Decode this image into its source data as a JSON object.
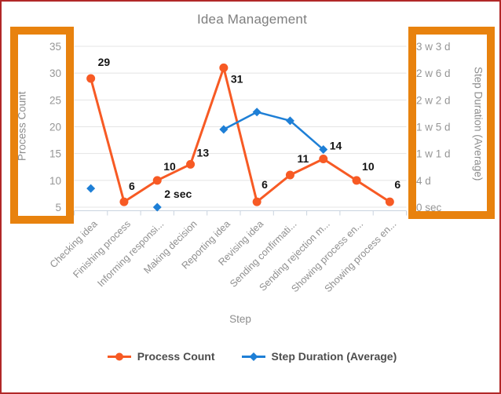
{
  "window": {
    "frame_border_color": "#B12828",
    "background": "#FFFFFF"
  },
  "chart": {
    "title": "Idea Management",
    "x_axis_title": "Step",
    "left_axis_title": "Process Count",
    "right_axis_title": "Step Duration (Average)"
  },
  "colors": {
    "annotation_box": "#E8820E",
    "process_count_series": "#F75A24",
    "duration_series": "#1E7FD6",
    "gridline": "#E4E4E4",
    "axis_line": "#C9D3DF",
    "tick_label": "#969696",
    "category_label": "#8F8F8F",
    "data_label": "#141414"
  },
  "annotations": {
    "left_axis_highlighted": true,
    "right_axis_highlighted": true
  },
  "chart_data": {
    "type": "line",
    "title": "Idea Management",
    "xlabel": "Step",
    "ylabel_left": "Process Count",
    "ylabel_right": "Step Duration (Average)",
    "grid": "horizontal",
    "legend_position": "bottom",
    "categories": [
      "Checking idea",
      "Finishing process",
      "Informing responsi...",
      "Making decision",
      "Reporting idea",
      "Revising idea",
      "Sending confirmati...",
      "Sending rejection m...",
      "Showing process en...",
      "Showing process en..."
    ],
    "left_axis": {
      "ticks": [
        5,
        10,
        15,
        20,
        25,
        30,
        35
      ],
      "range": [
        5,
        35
      ]
    },
    "right_axis": {
      "tick_labels": [
        "0 sec",
        "4 d",
        "1 w 1 d",
        "1 w 5 d",
        "2 w 2 d",
        "2 w 6 d",
        "3 w 3 d"
      ],
      "tick_values_days": [
        0,
        4,
        8,
        12,
        16,
        20,
        24
      ],
      "range_days": [
        0,
        24
      ]
    },
    "series": [
      {
        "name": "Process Count",
        "axis": "left",
        "color": "#F75A24",
        "marker": "circle",
        "values": [
          29,
          6,
          10,
          13,
          31,
          6,
          11,
          14,
          10,
          6
        ],
        "labels": [
          {
            "text": "29",
            "dx": 9,
            "dy": -16
          },
          {
            "text": "6",
            "dx": 6,
            "dy": -15
          },
          {
            "text": "10",
            "dx": 8,
            "dy": -13
          },
          {
            "text": "13",
            "dx": 8,
            "dy": -10
          },
          {
            "text": "31",
            "dx": 9,
            "dy": 19
          },
          {
            "text": "6",
            "dx": 6,
            "dy": -17
          },
          {
            "text": "11",
            "dx": 9,
            "dy": -16
          },
          {
            "text": "14",
            "dx": 8,
            "dy": -12
          },
          {
            "text": "10",
            "dx": 7,
            "dy": -13
          },
          {
            "text": "6",
            "dx": 6,
            "dy": -17
          }
        ]
      },
      {
        "name": "Step Duration (Average)",
        "axis": "right",
        "color": "#1E7FD6",
        "marker": "diamond",
        "values_days": [
          2.8,
          null,
          0,
          null,
          11.6,
          14.2,
          12.9,
          8.6,
          null,
          null
        ],
        "labels": [
          null,
          null,
          {
            "text": "2 sec",
            "dx": 9,
            "dy": -12
          },
          null,
          null,
          null,
          null,
          null,
          null,
          null
        ]
      }
    ]
  }
}
